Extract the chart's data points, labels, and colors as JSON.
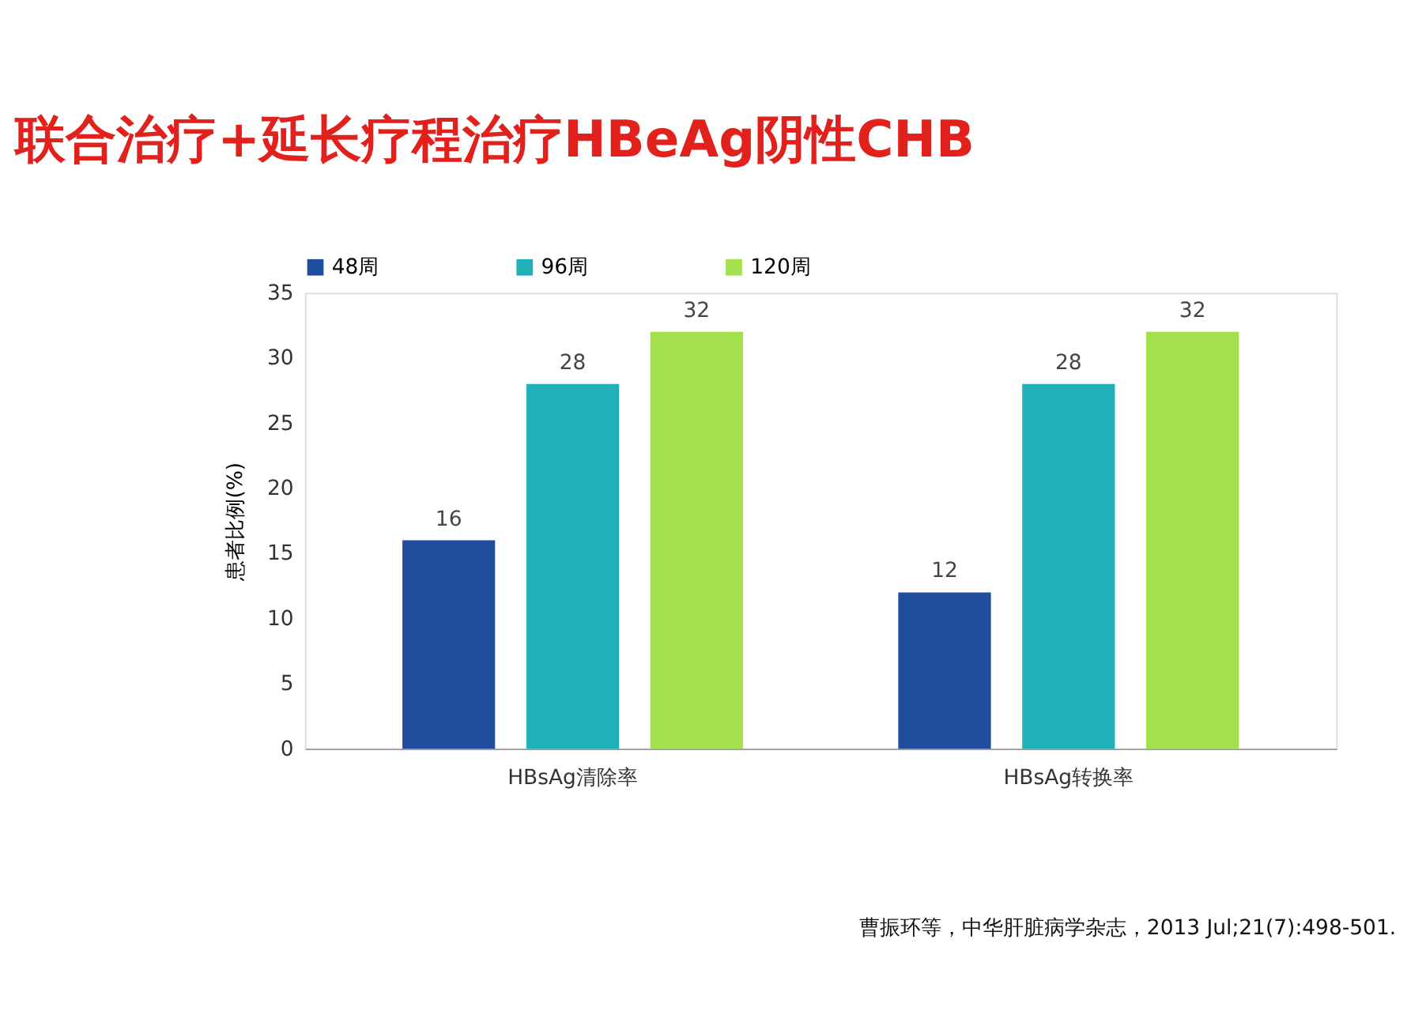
{
  "chart_data": {
    "type": "bar",
    "title": "联合治疗+延长疗程治疗HBeAg阴性CHB",
    "ylabel": "患者比例(%)",
    "categories": [
      "HBsAg清除率",
      "HBsAg转换率"
    ],
    "series": [
      {
        "name": "48周",
        "color": "#1f4e9e",
        "values": [
          16,
          12
        ]
      },
      {
        "name": "96周",
        "color": "#1fb0b8",
        "values": [
          28,
          28
        ]
      },
      {
        "name": "120周",
        "color": "#a3e04e",
        "values": [
          32,
          32
        ]
      }
    ],
    "ylim": [
      0,
      35
    ],
    "yticks": [
      0,
      5,
      10,
      15,
      20,
      25,
      30,
      35
    ],
    "grid": false,
    "legend": "top",
    "data_labels": true,
    "annotations": [
      "曹振环等，中华肝脏病学杂志，2013 Jul;21(7):498-501."
    ]
  }
}
